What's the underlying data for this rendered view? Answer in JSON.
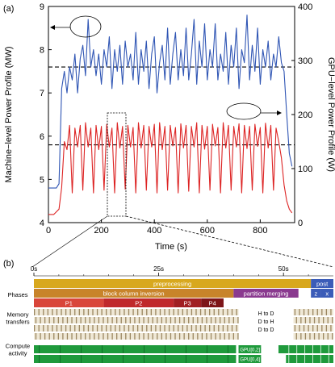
{
  "chart_data": [
    {
      "panel_label": "(a)",
      "type": "line",
      "xlabel": "Time (s)",
      "ylabel_left": "Machine−level Power Profile (MW)",
      "ylabel_right": "GPU−level Power Profile (W)",
      "xlim": [
        0,
        930
      ],
      "ylim_left": [
        4,
        9
      ],
      "ylim_right": [
        0,
        400
      ],
      "x_ticks": [
        "0",
        "200",
        "400",
        "600",
        "800"
      ],
      "y_ticks_left": [
        "4",
        "5",
        "6",
        "7",
        "8",
        "9"
      ],
      "y_ticks_right": [
        "0",
        "100",
        "200",
        "300",
        "400"
      ],
      "dashed_reference_lines": [
        {
          "axis": "left",
          "value": 7.6
        },
        {
          "axis": "left",
          "value": 5.8
        }
      ],
      "series": [
        {
          "axis": "left",
          "color": "#2f55b4",
          "x": [
            0,
            20,
            30,
            40,
            50,
            60,
            70,
            80,
            90,
            100,
            110,
            120,
            130,
            140,
            150,
            160,
            170,
            180,
            190,
            200,
            210,
            220,
            230,
            240,
            250,
            260,
            270,
            280,
            290,
            300,
            310,
            320,
            330,
            340,
            350,
            360,
            370,
            380,
            390,
            400,
            410,
            420,
            430,
            440,
            450,
            460,
            470,
            480,
            490,
            500,
            510,
            520,
            530,
            540,
            550,
            560,
            570,
            580,
            590,
            600,
            610,
            620,
            630,
            640,
            650,
            660,
            670,
            680,
            690,
            700,
            710,
            720,
            730,
            740,
            750,
            760,
            770,
            780,
            790,
            800,
            810,
            820,
            830,
            840,
            850,
            860,
            870,
            880,
            890,
            900,
            910,
            920
          ],
          "values": [
            4.8,
            4.8,
            4.8,
            4.9,
            7.1,
            7.5,
            7.0,
            7.6,
            7.3,
            7.9,
            7.0,
            7.8,
            8.1,
            7.4,
            8.7,
            7.6,
            8.0,
            7.4,
            7.9,
            7.2,
            8.0,
            7.6,
            8.3,
            7.1,
            8.0,
            7.5,
            8.1,
            7.2,
            8.2,
            7.6,
            7.9,
            7.3,
            8.4,
            7.2,
            8.0,
            7.5,
            8.2,
            7.1,
            7.9,
            8.3,
            7.0,
            7.7,
            8.1,
            7.3,
            8.5,
            7.2,
            7.9,
            8.4,
            7.3,
            8.0,
            7.4,
            8.5,
            7.3,
            7.9,
            8.7,
            7.2,
            8.2,
            7.6,
            8.6,
            7.3,
            8.0,
            7.6,
            8.6,
            7.3,
            7.9,
            7.5,
            8.4,
            7.2,
            8.1,
            7.6,
            8.5,
            7.1,
            8.0,
            7.7,
            8.8,
            7.3,
            8.1,
            7.5,
            8.5,
            7.2,
            8.0,
            7.6,
            8.2,
            7.3,
            7.9,
            7.6,
            8.3,
            7.7,
            7.5,
            6.5,
            5.6,
            5.3
          ]
        },
        {
          "axis": "right",
          "color": "#dd2424",
          "x": [
            0,
            20,
            30,
            40,
            50,
            60,
            70,
            80,
            90,
            100,
            110,
            120,
            130,
            140,
            150,
            160,
            170,
            180,
            190,
            200,
            210,
            220,
            230,
            240,
            250,
            260,
            270,
            280,
            290,
            300,
            310,
            320,
            330,
            340,
            350,
            360,
            370,
            380,
            390,
            400,
            410,
            420,
            430,
            440,
            450,
            460,
            470,
            480,
            490,
            500,
            510,
            520,
            530,
            540,
            550,
            560,
            570,
            580,
            590,
            600,
            610,
            620,
            630,
            640,
            650,
            660,
            670,
            680,
            690,
            700,
            710,
            720,
            730,
            740,
            750,
            760,
            770,
            780,
            790,
            800,
            810,
            820,
            830,
            840,
            850,
            860,
            870,
            880,
            890,
            900,
            910,
            920
          ],
          "values": [
            15,
            15,
            20,
            25,
            65,
            150,
            135,
            180,
            55,
            175,
            140,
            180,
            60,
            185,
            140,
            175,
            55,
            180,
            135,
            178,
            60,
            182,
            140,
            175,
            55,
            185,
            138,
            178,
            62,
            180,
            140,
            176,
            55,
            185,
            138,
            180,
            60,
            178,
            140,
            182,
            55,
            185,
            135,
            178,
            60,
            180,
            142,
            176,
            55,
            183,
            138,
            180,
            58,
            178,
            140,
            185,
            55,
            180,
            136,
            178,
            60,
            182,
            142,
            176,
            55,
            185,
            138,
            180,
            60,
            178,
            140,
            183,
            55,
            180,
            137,
            178,
            60,
            182,
            141,
            176,
            55,
            184,
            138,
            180,
            60,
            175,
            150,
            120,
            70,
            40,
            25,
            18
          ]
        }
      ],
      "annotations": [
        "circled peak with arrow pointing to left axis",
        "circled peak with arrow pointing to right axis"
      ]
    },
    {
      "panel_label": "(b)",
      "type": "table",
      "time_ticks": [
        "0s",
        "25s",
        "50s"
      ],
      "time_range_s": [
        0,
        60
      ],
      "rows": [
        {
          "label": "Phases"
        },
        {
          "label": "Memory\ntransfers"
        },
        {
          "label": "Compute\nactivity"
        }
      ],
      "phase_bars": [
        {
          "text": "preprocessing",
          "start_s": 0,
          "end_s": 55.5,
          "color": "#d8a81e"
        },
        {
          "text": "post",
          "start_s": 55.5,
          "end_s": 60,
          "color": "#3b5cb8"
        },
        {
          "text": "block column inversion",
          "start_s": 0,
          "end_s": 40,
          "color": "#c8842a"
        },
        {
          "text": "partition merging",
          "start_s": 40,
          "end_s": 53,
          "color": "#8a3a8f"
        },
        {
          "text": "z",
          "start_s": 55.5,
          "end_s": 57.5,
          "color": "#3b5cb8"
        },
        {
          "text": "x",
          "start_s": 57.5,
          "end_s": 60,
          "color": "#3b5cb8"
        },
        {
          "text": "P1",
          "start_s": 0,
          "end_s": 14,
          "color": "#d9463a"
        },
        {
          "text": "P2",
          "start_s": 14,
          "end_s": 28,
          "color": "#c0282b"
        },
        {
          "text": "P3",
          "start_s": 28,
          "end_s": 33.5,
          "color": "#a11f22"
        },
        {
          "text": "P4",
          "start_s": 33.5,
          "end_s": 38,
          "color": "#7d1518"
        }
      ],
      "memory_labels": [
        "H to D",
        "D to H",
        "D to D"
      ],
      "gpu_labels": [
        "GPU[0,2]",
        "GPU[0,4]"
      ]
    }
  ],
  "colors": {
    "blue": "#2f55b4",
    "red": "#dd2424",
    "memory_stripe": "#9b8761",
    "compute_green": "#1f9a3c"
  }
}
